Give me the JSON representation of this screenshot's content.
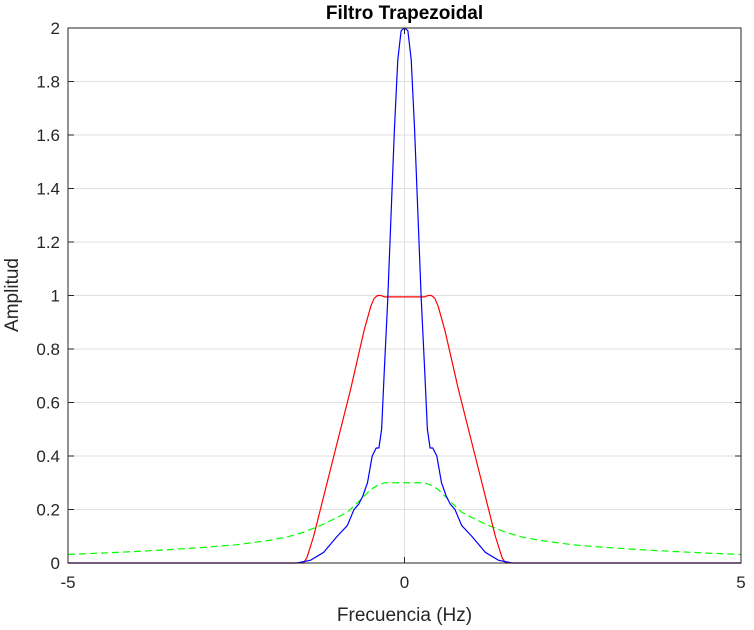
{
  "chart_data": {
    "type": "line",
    "title": "Filtro Trapezoidal",
    "xlabel": "Frecuencia (Hz)",
    "ylabel": "Amplitud",
    "xlim": [
      -5,
      5
    ],
    "ylim": [
      0,
      2
    ],
    "xticks": [
      -5,
      0,
      5
    ],
    "xtick_labels": [
      "-5",
      "0",
      "5"
    ],
    "yticks": [
      0,
      0.2,
      0.4,
      0.6,
      0.8,
      1,
      1.2,
      1.4,
      1.6,
      1.8,
      2
    ],
    "ytick_labels": [
      "0",
      "0.2",
      "0.4",
      "0.6",
      "0.8",
      "1",
      "1.2",
      "1.4",
      "1.6",
      "1.8",
      "2"
    ],
    "grid": true,
    "series": [
      {
        "color": "#ff0000",
        "style": "solid",
        "x": [
          -5,
          -1.5,
          -1.45,
          -1.35,
          -1.2,
          -1.0,
          -0.8,
          -0.6,
          -0.5,
          -0.45,
          -0.4,
          -0.35,
          -0.3,
          -0.2,
          -0.1,
          0,
          0.1,
          0.2,
          0.3,
          0.35,
          0.4,
          0.45,
          0.5,
          0.6,
          0.8,
          1.0,
          1.2,
          1.35,
          1.45,
          1.5,
          5
        ],
        "y": [
          0,
          0,
          0.02,
          0.1,
          0.25,
          0.45,
          0.65,
          0.87,
          0.96,
          0.99,
          1.0,
          1.0,
          0.995,
          0.995,
          0.995,
          0.995,
          0.995,
          0.995,
          0.995,
          1.0,
          1.0,
          0.99,
          0.96,
          0.87,
          0.65,
          0.45,
          0.25,
          0.1,
          0.02,
          0,
          0
        ]
      },
      {
        "color": "#0000ff",
        "style": "solid",
        "x": [
          -5,
          -1.6,
          -1.4,
          -1.2,
          -1.0,
          -0.85,
          -0.75,
          -0.68,
          -0.62,
          -0.55,
          -0.48,
          -0.42,
          -0.38,
          -0.34,
          -0.3,
          -0.25,
          -0.2,
          -0.15,
          -0.1,
          -0.05,
          0,
          0.05,
          0.1,
          0.15,
          0.2,
          0.25,
          0.3,
          0.34,
          0.38,
          0.42,
          0.48,
          0.55,
          0.62,
          0.68,
          0.75,
          0.85,
          1.0,
          1.2,
          1.4,
          1.6,
          5
        ],
        "y": [
          0,
          0,
          0.01,
          0.04,
          0.1,
          0.14,
          0.2,
          0.22,
          0.25,
          0.3,
          0.4,
          0.43,
          0.43,
          0.5,
          0.72,
          0.98,
          1.3,
          1.62,
          1.88,
          1.99,
          2.0,
          1.99,
          1.88,
          1.62,
          1.3,
          0.98,
          0.72,
          0.5,
          0.43,
          0.43,
          0.4,
          0.3,
          0.25,
          0.22,
          0.2,
          0.14,
          0.1,
          0.04,
          0.01,
          0,
          0
        ]
      },
      {
        "color": "#00ff00",
        "style": "dashed",
        "x": [
          -5,
          -4.5,
          -4,
          -3.5,
          -3,
          -2.5,
          -2,
          -1.75,
          -1.5,
          -1.25,
          -1,
          -0.85,
          -0.7,
          -0.6,
          -0.5,
          -0.4,
          -0.3,
          0.3,
          0.4,
          0.5,
          0.6,
          0.7,
          0.85,
          1,
          1.25,
          1.5,
          1.75,
          2,
          2.5,
          3,
          3.5,
          4,
          4.5,
          5
        ],
        "y": [
          0.032,
          0.037,
          0.043,
          0.05,
          0.058,
          0.068,
          0.085,
          0.097,
          0.115,
          0.14,
          0.17,
          0.19,
          0.225,
          0.25,
          0.275,
          0.29,
          0.3,
          0.3,
          0.29,
          0.275,
          0.25,
          0.225,
          0.19,
          0.17,
          0.14,
          0.115,
          0.097,
          0.085,
          0.068,
          0.058,
          0.05,
          0.043,
          0.037,
          0.032
        ]
      }
    ]
  }
}
